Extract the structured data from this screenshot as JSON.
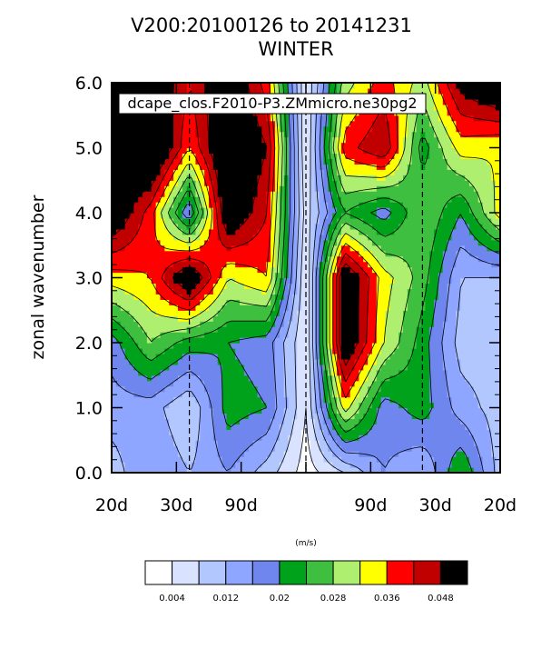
{
  "title_line1": "V200:20100126 to 20141231",
  "title_line2": "WINTER",
  "case_label": "dcape_clos.F2010-P3.ZMmicro.ne30pg2",
  "colorbar": {
    "unit": "(m/s)",
    "ticks": [
      "0.004",
      "0.012",
      "0.02",
      "0.028",
      "0.036",
      "0.048"
    ],
    "colors": [
      "#ffffff",
      "#d9e3ff",
      "#b3c7ff",
      "#8ea6ff",
      "#6f86ee",
      "#00a21c",
      "#3fbf3f",
      "#aeef6f",
      "#ffff00",
      "#ff0000",
      "#c00000",
      "#000000"
    ]
  },
  "chart_data": {
    "type": "heatmap",
    "title": "V200:20100126 to 20141231",
    "subtitle": "WINTER",
    "ylabel": "zonal wavenumber",
    "xlabel": "",
    "x_tick_labels": [
      "20d",
      "30d",
      "90d",
      "",
      "90d",
      "30d",
      "20d"
    ],
    "y_tick_labels": [
      "0.0",
      "1.0",
      "2.0",
      "3.0",
      "4.0",
      "5.0",
      "6.0"
    ],
    "ylim": [
      0,
      6
    ],
    "x": [
      -0.05,
      -0.04,
      -0.03,
      -0.02,
      -0.01,
      0.0,
      0.01,
      0.02,
      0.03,
      0.04,
      0.05
    ],
    "y": [
      0,
      1,
      2,
      3,
      4,
      5,
      6
    ],
    "levels": [
      0.004,
      0.008,
      0.012,
      0.016,
      0.02,
      0.024,
      0.028,
      0.032,
      0.036,
      0.04,
      0.044,
      0.048
    ],
    "z": [
      [
        0.01,
        0.016,
        0.012,
        0.016,
        0.01,
        0.002,
        0.008,
        0.016,
        0.012,
        0.024,
        0.01
      ],
      [
        0.014,
        0.014,
        0.008,
        0.022,
        0.02,
        0.004,
        0.034,
        0.018,
        0.022,
        0.014,
        0.01
      ],
      [
        0.018,
        0.028,
        0.022,
        0.02,
        0.018,
        0.004,
        0.05,
        0.032,
        0.022,
        0.01,
        0.01
      ],
      [
        0.034,
        0.036,
        0.05,
        0.032,
        0.036,
        0.004,
        0.05,
        0.034,
        0.026,
        0.012,
        0.012
      ],
      [
        0.05,
        0.038,
        0.016,
        0.05,
        0.04,
        0.006,
        0.024,
        0.018,
        0.028,
        0.02,
        0.034
      ],
      [
        0.044,
        0.054,
        0.036,
        0.052,
        0.044,
        0.004,
        0.038,
        0.044,
        0.022,
        0.034,
        0.032
      ],
      [
        0.046,
        0.05,
        0.04,
        0.05,
        0.038,
        0.004,
        0.03,
        0.038,
        0.03,
        0.046,
        0.052
      ]
    ],
    "grid": false,
    "reference_lines_x": [
      -0.03,
      0.0,
      0.03
    ]
  }
}
